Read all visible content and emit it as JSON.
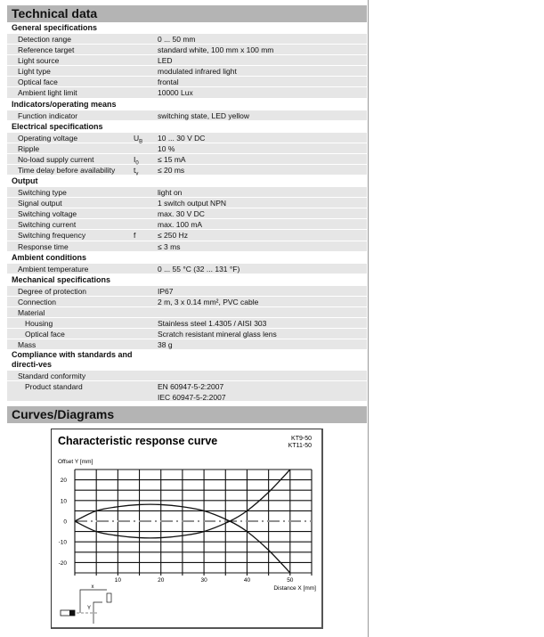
{
  "technical_data": {
    "title": "Technical data",
    "sections": [
      {
        "title": "General specifications",
        "rows": [
          {
            "label": "Detection range",
            "value": "0 ... 50 mm"
          },
          {
            "label": "Reference target",
            "value": "standard white, 100 mm x 100 mm"
          },
          {
            "label": "Light source",
            "value": "LED"
          },
          {
            "label": "Light type",
            "value": "modulated infrared light"
          },
          {
            "label": "Optical face",
            "value": "frontal"
          },
          {
            "label": "Ambient light limit",
            "value": "10000 Lux"
          }
        ]
      },
      {
        "title": "Indicators/operating means",
        "rows": [
          {
            "label": "Function indicator",
            "value": "switching state, LED yellow"
          }
        ]
      },
      {
        "title": "Electrical specifications",
        "rows": [
          {
            "label": "Operating voltage",
            "symbol": "UB",
            "value": "10 ... 30 V DC"
          },
          {
            "label": "Ripple",
            "value": "10  %"
          },
          {
            "label": "No-load supply current",
            "symbol": "I0",
            "value": "≤ 15 mA"
          },
          {
            "label": "Time delay before availability",
            "symbol": "tv",
            "value": "≤ 20 ms"
          }
        ]
      },
      {
        "title": "Output",
        "rows": [
          {
            "label": "Switching type",
            "value": "light on"
          },
          {
            "label": "Signal output",
            "value": "1 switch output NPN"
          },
          {
            "label": "Switching voltage",
            "value": "max. 30 V DC"
          },
          {
            "label": "Switching current",
            "value": "max. 100 mA"
          },
          {
            "label": "Switching frequency",
            "symbol": "f",
            "value": "≤ 250 Hz"
          },
          {
            "label": "Response time",
            "value": "≤ 3 ms"
          }
        ]
      },
      {
        "title": "Ambient conditions",
        "rows": [
          {
            "label": "Ambient temperature",
            "value": "0 ... 55 °C (32 ... 131 °F)"
          }
        ]
      },
      {
        "title": "Mechanical specifications",
        "rows": [
          {
            "label": "Degree of protection",
            "value": "IP67"
          },
          {
            "label": "Connection",
            "value": "2 m, 3 x 0.14 mm², PVC cable"
          },
          {
            "label": "Material",
            "value": ""
          },
          {
            "label": "Housing",
            "value": "Stainless steel 1.4305 / AISI 303",
            "level": 2
          },
          {
            "label": "Optical face",
            "value": "Scratch resistant mineral glass lens",
            "level": 2
          },
          {
            "label": "Mass",
            "value": "38 g"
          }
        ]
      },
      {
        "title": "Compliance with standards and directi-ves",
        "rows": [
          {
            "label": "Standard conformity",
            "value": ""
          },
          {
            "label": "Product standard",
            "value": "EN 60947-5-2:2007\nIEC 60947-5-2:2007",
            "level": 2
          }
        ]
      }
    ]
  },
  "curves": {
    "title": "Curves/Diagrams"
  },
  "chart_data": {
    "type": "line",
    "title": "Characteristic response curve",
    "models": [
      "KT9-50",
      "KT11-50"
    ],
    "xlabel": "Distance X [mm]",
    "ylabel": "Offset Y [mm]",
    "xlim": [
      0,
      55
    ],
    "ylim": [
      -25,
      25
    ],
    "xticks": [
      10,
      20,
      30,
      40,
      50
    ],
    "yticks": [
      20,
      10,
      0,
      -10,
      -20
    ],
    "grid": true,
    "diagram_labels": {
      "x": "x",
      "y": "Y"
    },
    "series": [
      {
        "x": [
          0,
          5,
          10,
          15,
          20,
          25,
          30,
          36,
          40,
          45,
          50
        ],
        "y": [
          0,
          5,
          7,
          8,
          8,
          7,
          5,
          0,
          -5,
          -14,
          -25
        ]
      },
      {
        "x": [
          0,
          5,
          10,
          15,
          20,
          25,
          30,
          36,
          40,
          45,
          50
        ],
        "y": [
          0,
          -5,
          -7,
          -8,
          -8,
          -7,
          -5,
          0,
          5,
          14,
          25
        ]
      }
    ]
  }
}
